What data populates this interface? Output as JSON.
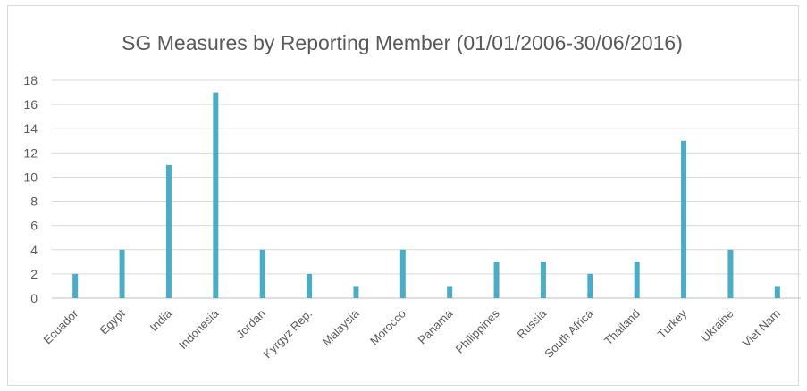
{
  "chart_data": {
    "type": "bar",
    "title": "SG Measures by Reporting Member (01/01/2006-30/06/2016)",
    "categories": [
      "Ecuador",
      "Egypt",
      "India",
      "Indonesia",
      "Jordan",
      "Kyrgyz Rep.",
      "Malaysia",
      "Morocco",
      "Panama",
      "Philippines",
      "Russia",
      "South Africa",
      "Thailand",
      "Turkey",
      "Ukraine",
      "Viet Nam"
    ],
    "values": [
      2,
      4,
      11,
      17,
      4,
      2,
      1,
      4,
      1,
      3,
      3,
      2,
      3,
      13,
      4,
      1
    ],
    "yticks": [
      "0",
      "2",
      "4",
      "6",
      "8",
      "10",
      "12",
      "14",
      "16",
      "18"
    ],
    "ylim": [
      0,
      18
    ],
    "xlabel": "",
    "ylabel": "",
    "grid": true,
    "bar_color": "#4bacc6"
  }
}
